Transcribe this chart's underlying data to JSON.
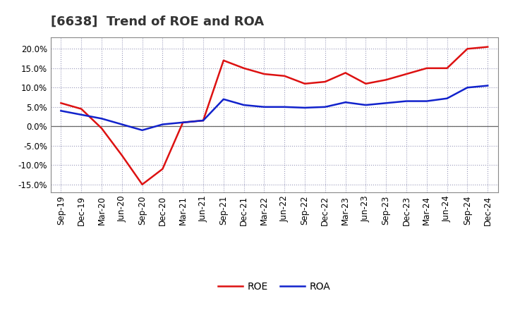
{
  "title": "[6638]  Trend of ROE and ROA",
  "x_labels": [
    "Sep-19",
    "Dec-19",
    "Mar-20",
    "Jun-20",
    "Sep-20",
    "Dec-20",
    "Mar-21",
    "Jun-21",
    "Sep-21",
    "Dec-21",
    "Mar-22",
    "Jun-22",
    "Sep-22",
    "Dec-22",
    "Mar-23",
    "Jun-23",
    "Sep-23",
    "Dec-23",
    "Mar-24",
    "Jun-24",
    "Sep-24",
    "Dec-24"
  ],
  "roe": [
    6.0,
    4.5,
    -0.5,
    -7.5,
    -15.0,
    -11.0,
    1.0,
    1.5,
    17.0,
    15.0,
    13.5,
    13.0,
    11.0,
    11.5,
    13.8,
    11.0,
    12.0,
    13.5,
    15.0,
    15.0,
    20.0,
    20.5
  ],
  "roa": [
    4.0,
    3.0,
    2.0,
    0.5,
    -1.0,
    0.5,
    1.0,
    1.5,
    7.0,
    5.5,
    5.0,
    5.0,
    4.8,
    5.0,
    6.2,
    5.5,
    6.0,
    6.5,
    6.5,
    7.2,
    10.0,
    10.5
  ],
  "roe_color": "#dd1111",
  "roa_color": "#1122cc",
  "background_color": "#ffffff",
  "plot_bg_color": "#ffffff",
  "grid_color": "#9999bb",
  "ylim": [
    -17.0,
    23.0
  ],
  "yticks": [
    -15.0,
    -10.0,
    -5.0,
    0.0,
    5.0,
    10.0,
    15.0,
    20.0
  ],
  "line_width": 1.8,
  "title_fontsize": 13,
  "tick_fontsize": 8.5,
  "legend_fontsize": 10
}
